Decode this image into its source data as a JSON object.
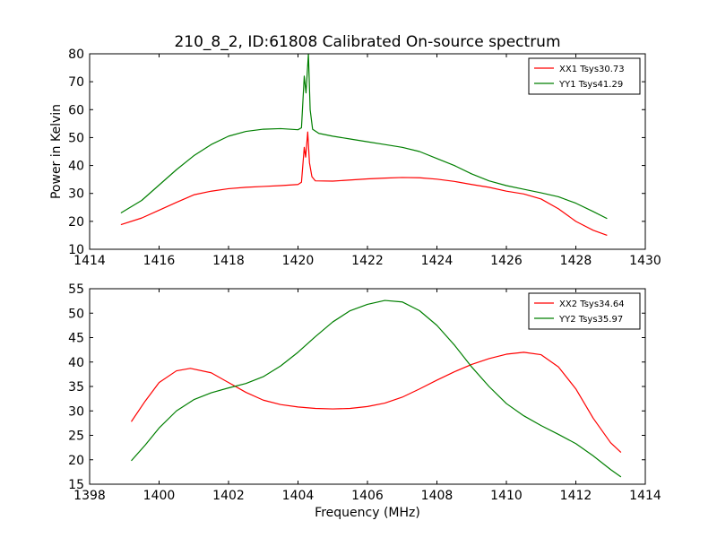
{
  "figure": {
    "title": "210_8_2, ID:61808 Calibrated On-source spectrum"
  },
  "colors": {
    "red": "#ff0000",
    "green": "#007f00",
    "axes": "#000000"
  },
  "chart_data": [
    {
      "type": "line",
      "title": "210_8_2, ID:61808 Calibrated On-source spectrum",
      "xlabel": "",
      "ylabel": "Power in Kelvin",
      "xlim": [
        1414,
        1430
      ],
      "ylim": [
        10,
        80
      ],
      "xticks": [
        1414,
        1416,
        1418,
        1420,
        1422,
        1424,
        1426,
        1428,
        1430
      ],
      "yticks": [
        10,
        20,
        30,
        40,
        50,
        60,
        70,
        80
      ],
      "legend": "top-right",
      "grid": false,
      "series": [
        {
          "name": "XX1 Tsys30.73",
          "color": "#ff0000",
          "points": [
            [
              1414.9,
              18.8
            ],
            [
              1415.5,
              21.2
            ],
            [
              1416.0,
              24.0
            ],
            [
              1416.5,
              26.8
            ],
            [
              1417.0,
              29.5
            ],
            [
              1417.5,
              30.8
            ],
            [
              1418.0,
              31.7
            ],
            [
              1418.5,
              32.2
            ],
            [
              1419.0,
              32.5
            ],
            [
              1419.5,
              32.8
            ],
            [
              1420.0,
              33.2
            ],
            [
              1420.1,
              34.0
            ],
            [
              1420.18,
              46.5
            ],
            [
              1420.22,
              43.0
            ],
            [
              1420.28,
              52.0
            ],
            [
              1420.33,
              41.0
            ],
            [
              1420.4,
              36.0
            ],
            [
              1420.5,
              34.5
            ],
            [
              1421.0,
              34.4
            ],
            [
              1421.5,
              34.8
            ],
            [
              1422.0,
              35.2
            ],
            [
              1422.5,
              35.5
            ],
            [
              1423.0,
              35.7
            ],
            [
              1423.5,
              35.6
            ],
            [
              1424.0,
              35.1
            ],
            [
              1424.5,
              34.3
            ],
            [
              1425.0,
              33.2
            ],
            [
              1425.5,
              32.2
            ],
            [
              1426.0,
              30.8
            ],
            [
              1426.5,
              29.8
            ],
            [
              1427.0,
              28.0
            ],
            [
              1427.5,
              24.5
            ],
            [
              1428.0,
              20.0
            ],
            [
              1428.5,
              16.8
            ],
            [
              1428.9,
              15.0
            ]
          ]
        },
        {
          "name": "YY1 Tsys41.29",
          "color": "#007f00",
          "points": [
            [
              1414.9,
              23.0
            ],
            [
              1415.5,
              27.5
            ],
            [
              1416.0,
              33.0
            ],
            [
              1416.5,
              38.5
            ],
            [
              1417.0,
              43.5
            ],
            [
              1417.5,
              47.5
            ],
            [
              1418.0,
              50.5
            ],
            [
              1418.5,
              52.2
            ],
            [
              1419.0,
              53.0
            ],
            [
              1419.5,
              53.2
            ],
            [
              1420.0,
              52.8
            ],
            [
              1420.1,
              53.5
            ],
            [
              1420.18,
              72.0
            ],
            [
              1420.23,
              66.0
            ],
            [
              1420.3,
              80.0
            ],
            [
              1420.35,
              60.0
            ],
            [
              1420.42,
              53.0
            ],
            [
              1420.6,
              51.5
            ],
            [
              1421.0,
              50.5
            ],
            [
              1421.5,
              49.5
            ],
            [
              1422.0,
              48.5
            ],
            [
              1422.5,
              47.5
            ],
            [
              1423.0,
              46.5
            ],
            [
              1423.5,
              45.0
            ],
            [
              1424.0,
              42.5
            ],
            [
              1424.5,
              40.0
            ],
            [
              1425.0,
              37.0
            ],
            [
              1425.5,
              34.5
            ],
            [
              1426.0,
              32.8
            ],
            [
              1426.5,
              31.5
            ],
            [
              1427.0,
              30.2
            ],
            [
              1427.5,
              28.8
            ],
            [
              1428.0,
              26.5
            ],
            [
              1428.5,
              23.5
            ],
            [
              1428.9,
              21.0
            ]
          ]
        }
      ]
    },
    {
      "type": "line",
      "title": "",
      "xlabel": "Frequency (MHz)",
      "ylabel": "",
      "xlim": [
        1398,
        1414
      ],
      "ylim": [
        15,
        55
      ],
      "xticks": [
        1398,
        1400,
        1402,
        1404,
        1406,
        1408,
        1410,
        1412,
        1414
      ],
      "yticks": [
        15,
        20,
        25,
        30,
        35,
        40,
        45,
        50,
        55
      ],
      "legend": "top-right",
      "grid": false,
      "series": [
        {
          "name": "XX2 Tsys34.64",
          "color": "#ff0000",
          "points": [
            [
              1399.2,
              27.8
            ],
            [
              1399.6,
              32.0
            ],
            [
              1400.0,
              35.8
            ],
            [
              1400.5,
              38.2
            ],
            [
              1400.9,
              38.7
            ],
            [
              1401.5,
              37.8
            ],
            [
              1402.0,
              35.8
            ],
            [
              1402.5,
              33.8
            ],
            [
              1403.0,
              32.2
            ],
            [
              1403.5,
              31.3
            ],
            [
              1404.0,
              30.8
            ],
            [
              1404.5,
              30.5
            ],
            [
              1405.0,
              30.4
            ],
            [
              1405.5,
              30.5
            ],
            [
              1406.0,
              30.9
            ],
            [
              1406.5,
              31.6
            ],
            [
              1407.0,
              32.8
            ],
            [
              1407.5,
              34.5
            ],
            [
              1408.0,
              36.3
            ],
            [
              1408.5,
              38.0
            ],
            [
              1409.0,
              39.5
            ],
            [
              1409.5,
              40.7
            ],
            [
              1410.0,
              41.6
            ],
            [
              1410.5,
              42.0
            ],
            [
              1411.0,
              41.5
            ],
            [
              1411.5,
              39.0
            ],
            [
              1412.0,
              34.5
            ],
            [
              1412.5,
              28.5
            ],
            [
              1413.0,
              23.5
            ],
            [
              1413.3,
              21.5
            ]
          ]
        },
        {
          "name": "YY2 Tsys35.97",
          "color": "#007f00",
          "points": [
            [
              1399.2,
              19.8
            ],
            [
              1399.6,
              23.0
            ],
            [
              1400.0,
              26.5
            ],
            [
              1400.5,
              30.0
            ],
            [
              1401.0,
              32.3
            ],
            [
              1401.5,
              33.7
            ],
            [
              1402.0,
              34.7
            ],
            [
              1402.5,
              35.6
            ],
            [
              1403.0,
              37.0
            ],
            [
              1403.5,
              39.2
            ],
            [
              1404.0,
              42.0
            ],
            [
              1404.5,
              45.2
            ],
            [
              1405.0,
              48.2
            ],
            [
              1405.5,
              50.5
            ],
            [
              1406.0,
              51.8
            ],
            [
              1406.5,
              52.6
            ],
            [
              1407.0,
              52.3
            ],
            [
              1407.5,
              50.5
            ],
            [
              1408.0,
              47.5
            ],
            [
              1408.5,
              43.5
            ],
            [
              1409.0,
              39.0
            ],
            [
              1409.5,
              35.0
            ],
            [
              1410.0,
              31.5
            ],
            [
              1410.5,
              29.0
            ],
            [
              1411.0,
              27.0
            ],
            [
              1411.5,
              25.2
            ],
            [
              1412.0,
              23.3
            ],
            [
              1412.5,
              20.8
            ],
            [
              1413.0,
              18.0
            ],
            [
              1413.3,
              16.5
            ]
          ]
        }
      ]
    }
  ]
}
